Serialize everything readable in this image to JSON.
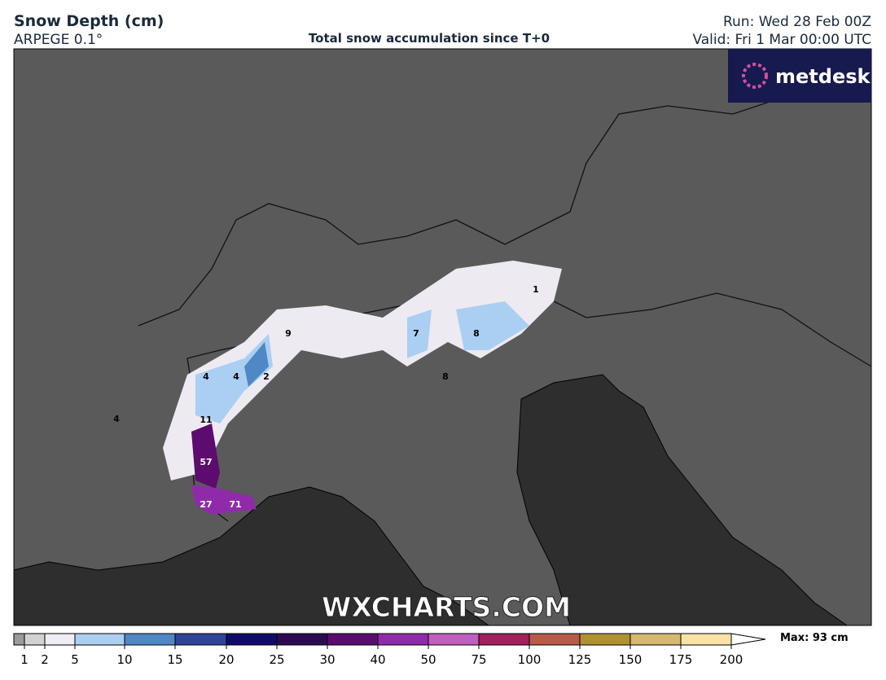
{
  "header": {
    "title": "Snow Depth (cm)",
    "model": "ARPEGE 0.1°",
    "subtitle": "Total snow accumulation since T+0",
    "run": "Run: Wed 28 Feb 00Z",
    "valid": "Valid: Fri 1 Mar 00:00 UTC"
  },
  "logo": "metdesk",
  "watermark": "WXCHARTS.COM",
  "legend": {
    "levels": [
      1,
      2,
      5,
      10,
      15,
      20,
      25,
      30,
      40,
      50,
      75,
      100,
      125,
      150,
      175,
      200
    ],
    "colors": [
      "#9a9a9a",
      "#d2d2d2",
      "#f0ecf4",
      "#aacff2",
      "#4f88c4",
      "#2f4598",
      "#130b6c",
      "#2c0b52",
      "#5c0b6e",
      "#8f2ba8",
      "#c25fc0",
      "#a1215b",
      "#b85b48",
      "#b0902f",
      "#d6b96f",
      "#f9e2a3"
    ],
    "max": "Max: 93 cm"
  },
  "points": [
    4,
    4,
    2,
    9,
    4,
    11,
    57,
    27,
    71,
    7,
    8,
    8,
    1
  ]
}
